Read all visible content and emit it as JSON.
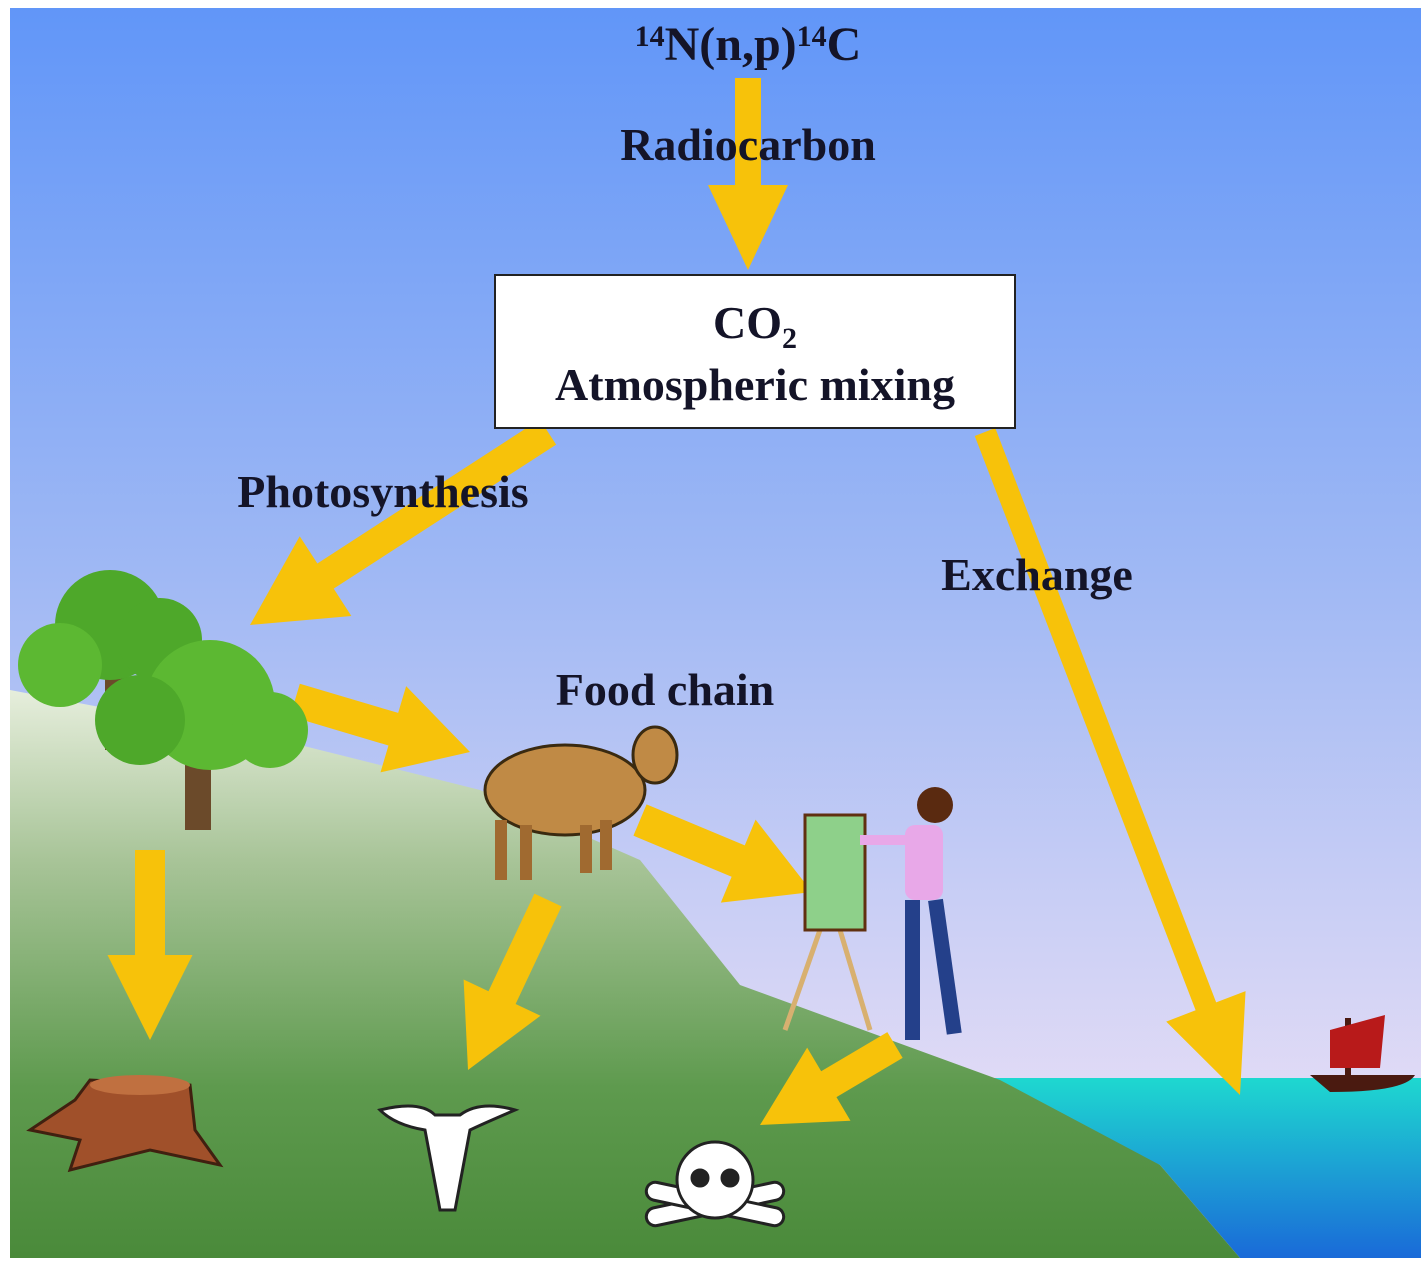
{
  "reaction": {
    "mass_in": "14",
    "reactant": "N(n,p)",
    "mass_out": "14",
    "product": "C"
  },
  "source_label": "Radiocarbon",
  "box": {
    "formula": "CO",
    "subscript": "2",
    "label": "Atmospheric mixing"
  },
  "labels": {
    "photosynthesis": "Photosynthesis",
    "exchange": "Exchange",
    "food_chain": "Food chain"
  }
}
